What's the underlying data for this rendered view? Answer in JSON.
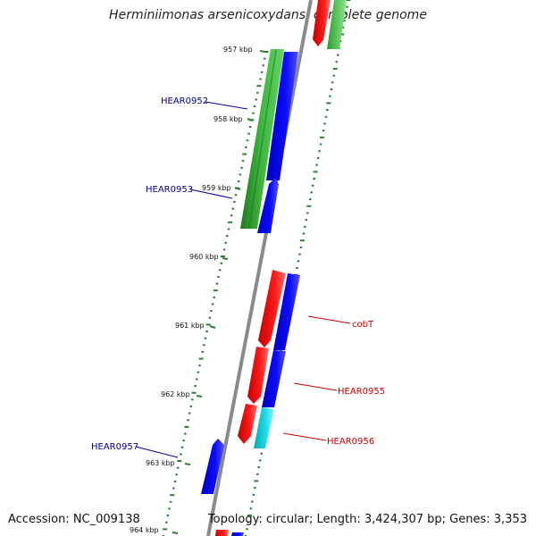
{
  "title": "Herminiimonas arsenicoxydans, complete genome",
  "footer": {
    "accession": "Accession: NC_009138",
    "topology": "Topology: circular; Length: 3,424,307 bp; Genes: 3,353"
  },
  "scale_labels": [
    "957 kbp",
    "958 kbp",
    "959 kbp",
    "960 kbp",
    "961 kbp",
    "962 kbp",
    "963 kbp",
    "964 kbp"
  ],
  "gene_labels": {
    "hear0952": "HEAR0952",
    "hear0953": "HEAR0953",
    "cobt": "cobT",
    "hear0955": "HEAR0955",
    "hear0956": "HEAR0956",
    "hear0957": "HEAR0957"
  },
  "colors": {
    "reverse_strand_label": "#00008b",
    "forward_strand_label": "#cc0000",
    "tick": "#2e7d32",
    "backbone": "#8a8a8a"
  }
}
